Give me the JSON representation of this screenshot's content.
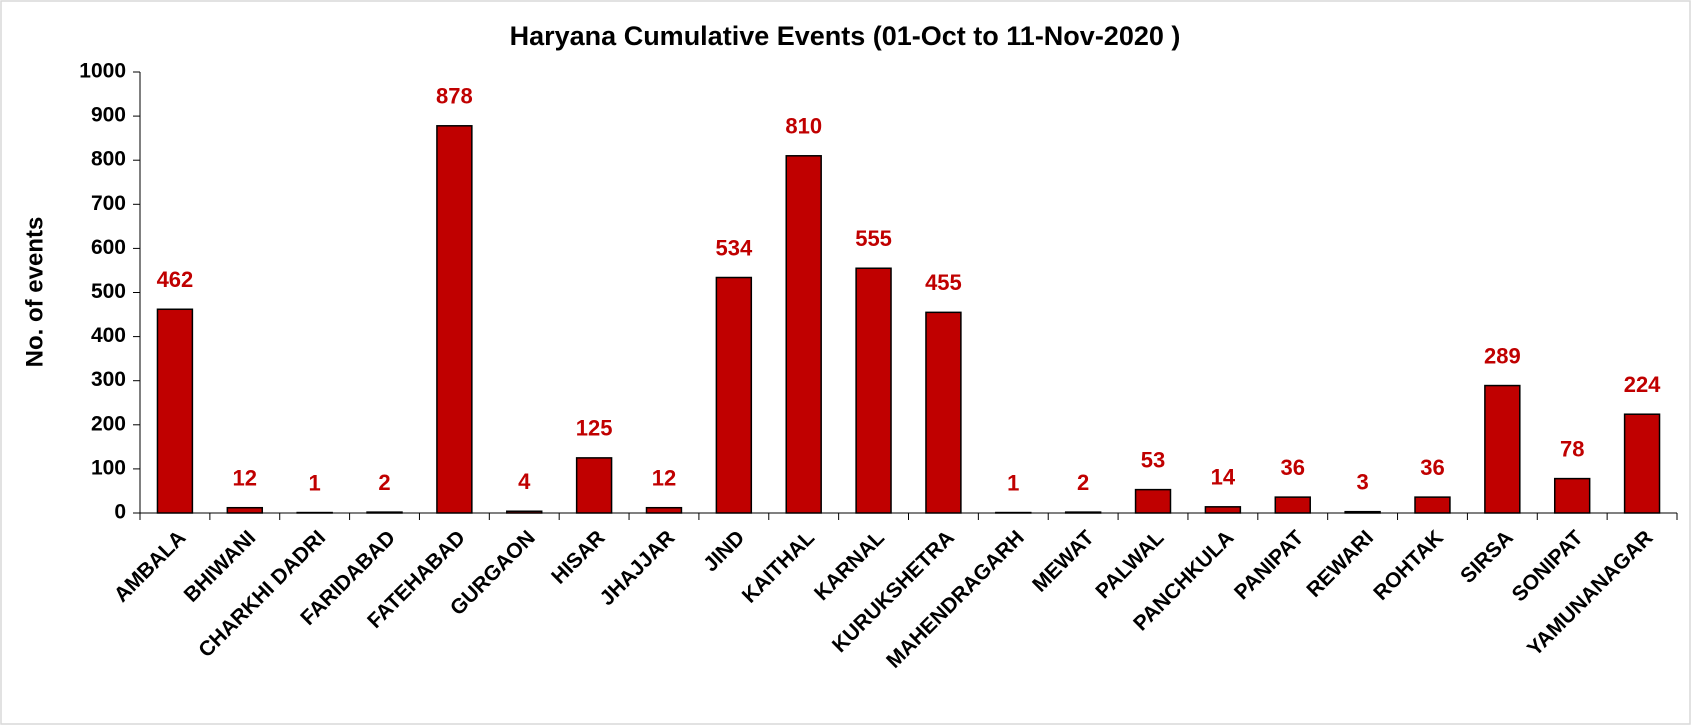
{
  "chart_data": {
    "type": "bar",
    "title": "Haryana Cumulative Events (01-Oct to 11-Nov-2020 )",
    "y_label": "No. of events",
    "categories": [
      "AMBALA",
      "BHIWANI",
      "CHARKHI DADRI",
      "FARIDABAD",
      "FATEHABAD",
      "GURGAON",
      "HISAR",
      "JHAJJAR",
      "JIND",
      "KAITHAL",
      "KARNAL",
      "KURUKSHETRA",
      "MAHENDRAGARH",
      "MEWAT",
      "PALWAL",
      "PANCHKULA",
      "PANIPAT",
      "REWARI",
      "ROHTAK",
      "SIRSA",
      "SONIPAT",
      "YAMUNANAGAR"
    ],
    "values": [
      462,
      12,
      1,
      2,
      878,
      4,
      125,
      12,
      534,
      810,
      555,
      455,
      1,
      2,
      53,
      14,
      36,
      3,
      36,
      289,
      78,
      224
    ],
    "color": "#c00000",
    "label_color": "#c00000",
    "ylim": [
      0,
      1000
    ],
    "yticks": [
      0,
      100,
      200,
      300,
      400,
      500,
      600,
      700,
      800,
      900,
      1000
    ],
    "grid": false
  }
}
